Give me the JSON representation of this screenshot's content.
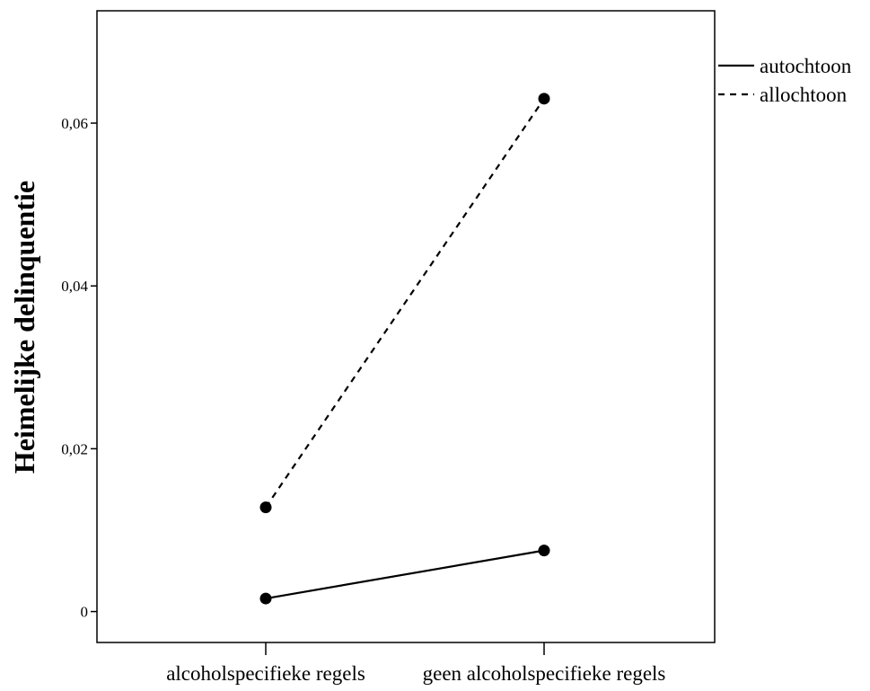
{
  "chart_data": {
    "type": "line",
    "title": "",
    "xlabel": "",
    "ylabel": "Heimelijke delinquentie",
    "categories": [
      "alcoholspecifieke regels",
      "geen alcoholspecifieke regels"
    ],
    "series": [
      {
        "name": "autochtoon",
        "values": [
          0.0016,
          0.0075
        ],
        "line_style": "solid",
        "color": "#000000"
      },
      {
        "name": "allochtoon",
        "values": [
          0.0128,
          0.063
        ],
        "line_style": "dashed",
        "color": "#000000"
      }
    ],
    "y_ticks": [
      {
        "value": 0,
        "label": "0"
      },
      {
        "value": 0.02,
        "label": "0,02"
      },
      {
        "value": 0.04,
        "label": "0,04"
      },
      {
        "value": 0.06,
        "label": "0,06"
      }
    ],
    "ylim": [
      -0.0038,
      0.0738
    ],
    "grid": false,
    "legend_position": "top-right-outside"
  }
}
